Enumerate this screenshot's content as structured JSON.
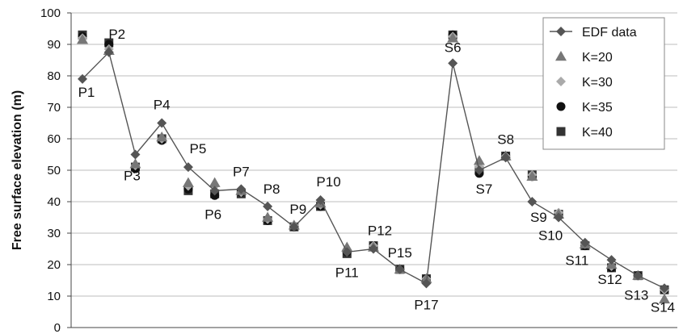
{
  "chart_data": {
    "type": "line",
    "title": "",
    "xlabel": "",
    "ylabel": "Free surface elevation (m)",
    "ylim": [
      0,
      100
    ],
    "yticks": [
      "0",
      "10",
      "20",
      "30",
      "40",
      "50",
      "60",
      "70",
      "80",
      "90",
      "100"
    ],
    "grid": "horizontal",
    "legend_position": "top-right",
    "categories": [
      "P1",
      "P2",
      "P3",
      "P4",
      "P5",
      "P6",
      "P7",
      "P8",
      "P9",
      "P10",
      "P11",
      "P12",
      "P15",
      "P17",
      "S6",
      "S7",
      "S8",
      "S9",
      "S10",
      "S11",
      "S12",
      "S13",
      "S14"
    ],
    "point_labels": [
      "P1",
      "P2",
      "P3",
      "P4",
      "P5",
      "P6",
      "P7",
      "P8",
      "P9",
      "P10",
      "P11",
      "P12",
      "P15",
      "P17",
      "S6",
      "S7",
      "S8",
      "S9",
      "S10",
      "S11",
      "S12",
      "S13",
      "S14"
    ],
    "series": [
      {
        "name": "EDF data",
        "marker": "diamond-line",
        "color": "#555555",
        "values": [
          79,
          87.5,
          55,
          65,
          51,
          43.5,
          44,
          38.5,
          32,
          40.5,
          24,
          25,
          18.5,
          14,
          84,
          50,
          54,
          40,
          35,
          27,
          21.5,
          16.5,
          12.5
        ]
      },
      {
        "name": "K=20",
        "marker": "triangle",
        "color": "#777777",
        "values": [
          91.5,
          88,
          52,
          60.5,
          46,
          46,
          43.5,
          35,
          32.5,
          39.5,
          25.5,
          25.5,
          18.5,
          15.5,
          92,
          53,
          54.5,
          48,
          36,
          26.5,
          20,
          16.5,
          9
        ]
      },
      {
        "name": "K=30",
        "marker": "diamond",
        "color": "#aaaaaa",
        "values": [
          92,
          88.5,
          51.5,
          60,
          45,
          45,
          43,
          34.5,
          32.5,
          39,
          24.5,
          26,
          18.5,
          15.5,
          92.5,
          51,
          54.5,
          48.5,
          36.5,
          26.5,
          19.5,
          16.5,
          12
        ]
      },
      {
        "name": "K=35",
        "marker": "circle",
        "color": "#111111",
        "values": [
          92.5,
          90,
          50.5,
          59.5,
          44,
          42,
          43,
          34,
          32,
          38.5,
          24,
          26,
          18.5,
          15.5,
          93,
          49,
          54.5,
          48,
          36,
          26,
          19,
          16.5,
          12
        ]
      },
      {
        "name": "K=40",
        "marker": "square",
        "color": "#333333",
        "values": [
          93,
          90.5,
          51,
          60,
          43.5,
          42.5,
          42.5,
          34,
          32,
          38.5,
          23.5,
          26,
          18.5,
          15.5,
          93,
          50,
          54.5,
          48.5,
          36,
          26,
          19,
          16.5,
          12
        ]
      }
    ]
  }
}
